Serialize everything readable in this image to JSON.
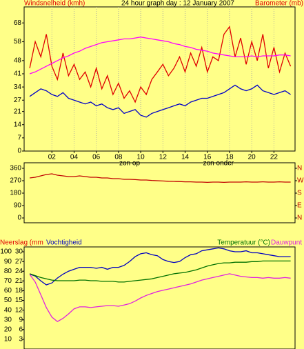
{
  "chart_data": [
    {
      "type": "line",
      "title": "24 hour graph day : 12 January 2007",
      "x": [
        0,
        0.5,
        1,
        1.5,
        2,
        2.5,
        3,
        3.5,
        4,
        4.5,
        5,
        5.5,
        6,
        6.5,
        7,
        7.5,
        8,
        8.5,
        9,
        9.5,
        10,
        10.5,
        11,
        11.5,
        12,
        12.5,
        13,
        13.5,
        14,
        14.5,
        15,
        15.5,
        16,
        16.5,
        17,
        17.5,
        18,
        18.5,
        19,
        19.5,
        20,
        20.5,
        21,
        21.5,
        22,
        22.5,
        23,
        23.5
      ],
      "xlim": [
        -0.5,
        23.9
      ],
      "xticks": [
        {
          "value": 2,
          "label": "02"
        },
        {
          "value": 4,
          "label": "04"
        },
        {
          "value": 6,
          "label": "06"
        },
        {
          "value": 8,
          "label": "08"
        },
        {
          "value": 10,
          "label": "10"
        },
        12,
        14,
        16,
        18,
        20,
        22
      ],
      "annotations": [
        {
          "text": "zon op",
          "x": 9
        },
        {
          "text": "zon onder",
          "x": 17
        }
      ],
      "ylim": [
        0,
        76.5
      ],
      "yticks": [
        0,
        7,
        14,
        21,
        27,
        34,
        41,
        48,
        58,
        68
      ],
      "grid": true,
      "series": [
        {
          "name": "Windsnelheid (kmh)",
          "color": "#e00000",
          "values": [
            44,
            58,
            50,
            62,
            45,
            38,
            52,
            40,
            46,
            38,
            42,
            34,
            44,
            33,
            40,
            30,
            36,
            28,
            32,
            26,
            34,
            30,
            38,
            42,
            46,
            40,
            44,
            50,
            42,
            52,
            45,
            55,
            42,
            50,
            48,
            62,
            66,
            50,
            60,
            46,
            58,
            48,
            62,
            44,
            55,
            42,
            52,
            45
          ]
        },
        {
          "color": "#0000c8",
          "values": [
            29,
            31,
            33,
            32,
            30,
            29,
            31,
            28,
            27,
            26,
            25,
            26,
            24,
            25,
            23,
            22,
            23,
            20,
            21,
            22,
            19,
            18,
            20,
            21,
            22,
            23,
            24,
            25,
            24,
            26,
            27,
            28,
            28,
            29,
            30,
            31,
            33,
            35,
            33,
            32,
            33,
            35,
            32,
            31,
            30,
            31,
            32,
            30
          ]
        },
        {
          "name": "Barometer (mb)",
          "color": "#ff00ff",
          "values": [
            41,
            42,
            43.5,
            45,
            46.5,
            48,
            49.5,
            50.5,
            52,
            53,
            54.5,
            55.5,
            56.5,
            57.5,
            58,
            58.5,
            59,
            59.5,
            59.5,
            60,
            60.5,
            60,
            59.5,
            59,
            58.5,
            58,
            57,
            56.5,
            55.5,
            55,
            54,
            53.5,
            53,
            52,
            51.5,
            51,
            50.5,
            50,
            50,
            50,
            50.5,
            50,
            50.5,
            50.5,
            50.5,
            51,
            51,
            50.5
          ]
        }
      ]
    },
    {
      "type": "line",
      "x": [
        0,
        0.5,
        1,
        1.5,
        2,
        2.5,
        3,
        3.5,
        4,
        4.5,
        5,
        5.5,
        6,
        6.5,
        7,
        7.5,
        8,
        8.5,
        9,
        9.5,
        10,
        10.5,
        11,
        11.5,
        12,
        12.5,
        13,
        13.5,
        14,
        14.5,
        15,
        15.5,
        16,
        16.5,
        17,
        17.5,
        18,
        18.5,
        19,
        19.5,
        20,
        20.5,
        21,
        21.5,
        22,
        22.5,
        23,
        23.5
      ],
      "xlim": [
        -0.5,
        23.9
      ],
      "ylim": [
        -35,
        400
      ],
      "yticks": [
        0,
        90,
        180,
        270,
        360
      ],
      "y2lim": [
        -35,
        400
      ],
      "y2ticks": [
        {
          "value": 0,
          "label": "N"
        },
        {
          "value": 90,
          "label": "E"
        },
        {
          "value": 180,
          "label": "S"
        },
        {
          "value": 270,
          "label": "W"
        },
        {
          "value": 360,
          "label": "N"
        }
      ],
      "series": [
        {
          "color": "#c00000",
          "values": [
            290,
            295,
            305,
            315,
            320,
            310,
            305,
            300,
            300,
            305,
            300,
            295,
            295,
            290,
            290,
            285,
            285,
            280,
            280,
            278,
            275,
            275,
            272,
            270,
            268,
            266,
            265,
            264,
            262,
            262,
            260,
            260,
            258,
            260,
            260,
            258,
            260,
            260,
            260,
            262,
            260,
            260,
            262,
            260,
            260,
            262,
            260,
            260
          ]
        }
      ]
    },
    {
      "type": "line",
      "x": [
        0,
        0.5,
        1,
        1.5,
        2,
        2.5,
        3,
        3.5,
        4,
        4.5,
        5,
        5.5,
        6,
        6.5,
        7,
        7.5,
        8,
        8.5,
        9,
        9.5,
        10,
        10.5,
        11,
        11.5,
        12,
        12.5,
        13,
        13.5,
        14,
        14.5,
        15,
        15.5,
        16,
        16.5,
        17,
        17.5,
        18,
        18.5,
        19,
        19.5,
        20,
        20.5,
        21,
        21.5,
        22,
        22.5,
        23,
        23.5
      ],
      "xlim": [
        -0.5,
        23.9
      ],
      "rain_label": "Neerslag (mm",
      "rain_lim": [
        0,
        31.5
      ],
      "rain_ticks": [
        3,
        6,
        9,
        12,
        15,
        18,
        21,
        24,
        27,
        30
      ],
      "ylim": [
        0,
        105
      ],
      "yticks": [
        10,
        20,
        30,
        40,
        50,
        60,
        70,
        80,
        90,
        100
      ],
      "y2lim": [
        0,
        16
      ],
      "series": [
        {
          "name": "Vochtigheid",
          "color": "#0000c0",
          "values": [
            77,
            75,
            70,
            66,
            68,
            73,
            77,
            80,
            82,
            84,
            84,
            84,
            83,
            84,
            82,
            84,
            84,
            86,
            90,
            95,
            98,
            99,
            97,
            96,
            92,
            90,
            89,
            90,
            94,
            97,
            98,
            101,
            102,
            103,
            104,
            103,
            101,
            100,
            100,
            101,
            99,
            99,
            98,
            97,
            96,
            95,
            95,
            95
          ]
        },
        {
          "name": "Temperatuur (°C)",
          "color": "#007000",
          "axis": "y2",
          "values": [
            11.8,
            11.5,
            11.2,
            11.0,
            10.8,
            10.7,
            10.7,
            10.7,
            10.7,
            10.8,
            10.8,
            10.7,
            10.7,
            10.6,
            10.6,
            10.6,
            10.5,
            10.5,
            10.6,
            10.7,
            10.8,
            10.9,
            11.0,
            11.2,
            11.4,
            11.6,
            11.8,
            11.9,
            12.0,
            12.2,
            12.4,
            12.7,
            13.0,
            13.2,
            13.4,
            13.5,
            13.5,
            13.6,
            13.6,
            13.6,
            13.7,
            13.7,
            13.8,
            13.8,
            13.8,
            13.8,
            13.8,
            13.8
          ]
        },
        {
          "name": "Dauwpunt",
          "color": "#e020e0",
          "axis": "y2",
          "values": [
            11.7,
            10.5,
            8.5,
            6.5,
            5,
            4.3,
            4.8,
            5.5,
            6.3,
            6.6,
            6.6,
            6.5,
            6.6,
            6.7,
            6.8,
            6.8,
            6.7,
            6.9,
            7.1,
            7.5,
            8.0,
            8.4,
            8.7,
            9.0,
            9.2,
            9.4,
            9.6,
            9.8,
            10.0,
            10.2,
            10.5,
            10.8,
            11.0,
            11.2,
            11.4,
            11.6,
            11.8,
            11.6,
            11.4,
            11.3,
            11.2,
            11.2,
            11.1,
            11.2,
            11.1,
            11.1,
            11.2,
            11.1
          ]
        }
      ]
    }
  ]
}
